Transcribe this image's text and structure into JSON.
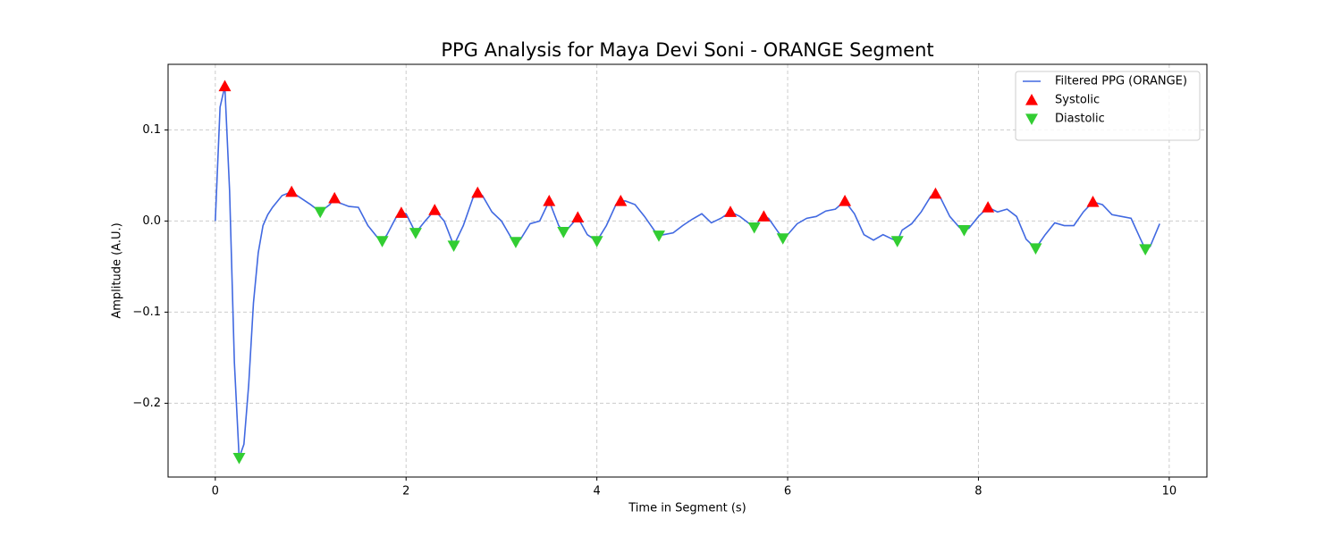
{
  "chart_data": {
    "type": "line",
    "title": "PPG Analysis for Maya Devi Soni - ORANGE Segment",
    "xlabel": "Time in Segment (s)",
    "ylabel": "Amplitude (A.U.)",
    "xlim": [
      -0.495,
      10.395
    ],
    "ylim": [
      -0.281,
      0.172
    ],
    "xticks": [
      0,
      2,
      4,
      6,
      8,
      10
    ],
    "yticks": [
      {
        "value": -0.2,
        "label": "−0.2"
      },
      {
        "value": -0.1,
        "label": "−0.1"
      },
      {
        "value": 0,
        "label": "0.0"
      },
      0.1
    ],
    "grid": true,
    "legend": "upper right",
    "series": [
      {
        "name": "Filtered PPG (ORANGE)",
        "color": "#4169e1",
        "marker": "line",
        "x": [
          0,
          0.05,
          0.1,
          0.15,
          0.2,
          0.25,
          0.3,
          0.35,
          0.4,
          0.45,
          0.5,
          0.55,
          0.6,
          0.7,
          0.8,
          0.9,
          1.0,
          1.1,
          1.2,
          1.25,
          1.3,
          1.4,
          1.5,
          1.6,
          1.7,
          1.75,
          1.8,
          1.9,
          1.95,
          2.0,
          2.1,
          2.2,
          2.3,
          2.4,
          2.5,
          2.6,
          2.7,
          2.75,
          2.8,
          2.9,
          3.0,
          3.1,
          3.15,
          3.2,
          3.3,
          3.4,
          3.5,
          3.6,
          3.65,
          3.7,
          3.8,
          3.9,
          4.0,
          4.1,
          4.2,
          4.25,
          4.3,
          4.4,
          4.5,
          4.6,
          4.65,
          4.7,
          4.8,
          4.9,
          5.0,
          5.1,
          5.2,
          5.3,
          5.4,
          5.5,
          5.6,
          5.65,
          5.7,
          5.75,
          5.8,
          5.9,
          5.95,
          6.0,
          6.1,
          6.2,
          6.3,
          6.4,
          6.5,
          6.6,
          6.7,
          6.8,
          6.9,
          7.0,
          7.1,
          7.15,
          7.2,
          7.3,
          7.4,
          7.5,
          7.55,
          7.6,
          7.7,
          7.8,
          7.85,
          7.9,
          8.0,
          8.1,
          8.2,
          8.3,
          8.4,
          8.5,
          8.6,
          8.7,
          8.8,
          8.9,
          9.0,
          9.1,
          9.2,
          9.3,
          9.4,
          9.5,
          9.6,
          9.7,
          9.75,
          9.8,
          9.9
        ],
        "values": [
          0,
          0.125,
          0.148,
          0.033,
          -0.155,
          -0.26,
          -0.245,
          -0.18,
          -0.09,
          -0.035,
          -0.005,
          0.007,
          0.015,
          0.028,
          0.032,
          0.025,
          0.018,
          0.01,
          0.018,
          0.025,
          0.02,
          0.016,
          0.015,
          -0.005,
          -0.018,
          -0.022,
          -0.015,
          0.005,
          0.009,
          0.008,
          -0.013,
          0.0,
          0.012,
          0.0,
          -0.027,
          -0.005,
          0.025,
          0.031,
          0.028,
          0.01,
          0.0,
          -0.018,
          -0.023,
          -0.02,
          -0.003,
          0.0,
          0.022,
          -0.005,
          -0.012,
          -0.008,
          0.004,
          -0.015,
          -0.022,
          -0.005,
          0.018,
          0.022,
          0.022,
          0.018,
          0.005,
          -0.01,
          -0.016,
          -0.015,
          -0.013,
          -0.005,
          0.002,
          0.008,
          -0.002,
          0.003,
          0.01,
          0.005,
          -0.003,
          -0.007,
          0.0,
          0.005,
          0.003,
          -0.012,
          -0.019,
          -0.015,
          -0.003,
          0.003,
          0.005,
          0.011,
          0.013,
          0.022,
          0.008,
          -0.015,
          -0.021,
          -0.015,
          -0.02,
          -0.022,
          -0.01,
          -0.003,
          0.01,
          0.027,
          0.03,
          0.026,
          0.005,
          -0.007,
          -0.01,
          -0.008,
          0.005,
          0.015,
          0.01,
          0.013,
          0.005,
          -0.02,
          -0.03,
          -0.015,
          -0.002,
          -0.005,
          -0.005,
          0.01,
          0.021,
          0.018,
          0.007,
          0.005,
          0.003,
          -0.02,
          -0.031,
          -0.028,
          -0.003
        ]
      },
      {
        "name": "Systolic",
        "color": "#ff0000",
        "marker": "triangle-up",
        "x": [
          0.1,
          0.8,
          1.25,
          1.95,
          2.3,
          2.75,
          3.5,
          3.8,
          4.25,
          5.4,
          5.75,
          6.6,
          7.55,
          8.1,
          9.2
        ],
        "values": [
          0.148,
          0.032,
          0.025,
          0.009,
          0.012,
          0.031,
          0.022,
          0.004,
          0.022,
          0.01,
          0.005,
          0.022,
          0.03,
          0.015,
          0.021
        ]
      },
      {
        "name": "Diastolic",
        "color": "#32cd32",
        "marker": "triangle-down",
        "x": [
          0.25,
          1.1,
          1.75,
          2.1,
          2.5,
          3.15,
          3.65,
          4.0,
          4.65,
          5.65,
          5.95,
          7.15,
          7.85,
          8.6,
          9.75
        ],
        "values": [
          -0.26,
          0.01,
          -0.022,
          -0.013,
          -0.027,
          -0.023,
          -0.012,
          -0.022,
          -0.016,
          -0.007,
          -0.019,
          -0.022,
          -0.01,
          -0.03,
          -0.031
        ]
      }
    ]
  }
}
